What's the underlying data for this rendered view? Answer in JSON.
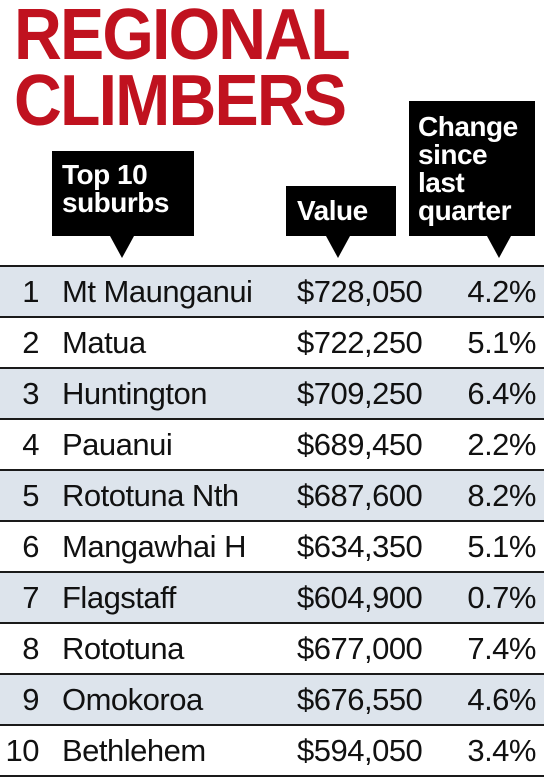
{
  "title": {
    "line1": "REGIONAL",
    "line2": "CLIMBERS"
  },
  "colors": {
    "title": "#c0121f",
    "header_bg": "#000000",
    "row_shade": "#dde4ec"
  },
  "headers": {
    "suburbs": [
      "Top 10",
      "suburbs"
    ],
    "value": "Value",
    "change": [
      "Change",
      "since",
      "last",
      "quarter"
    ]
  },
  "rows": [
    {
      "rank": "1",
      "suburb": "Mt Maunganui",
      "value": "$728,050",
      "change": "4.2%"
    },
    {
      "rank": "2",
      "suburb": "Matua",
      "value": "$722,250",
      "change": "5.1%"
    },
    {
      "rank": "3",
      "suburb": "Huntington",
      "value": "$709,250",
      "change": "6.4%"
    },
    {
      "rank": "4",
      "suburb": "Pauanui",
      "value": "$689,450",
      "change": "2.2%"
    },
    {
      "rank": "5",
      "suburb": "Rototuna Nth",
      "value": "$687,600",
      "change": "8.2%"
    },
    {
      "rank": "6",
      "suburb": "Mangawhai H",
      "value": "$634,350",
      "change": "5.1%"
    },
    {
      "rank": "7",
      "suburb": "Flagstaff",
      "value": "$604,900",
      "change": "0.7%"
    },
    {
      "rank": "8",
      "suburb": "Rototuna",
      "value": "$677,000",
      "change": "7.4%"
    },
    {
      "rank": "9",
      "suburb": "Omokoroa",
      "value": "$676,550",
      "change": "4.6%"
    },
    {
      "rank": "10",
      "suburb": "Bethlehem",
      "value": "$594,050",
      "change": "3.4%"
    }
  ]
}
